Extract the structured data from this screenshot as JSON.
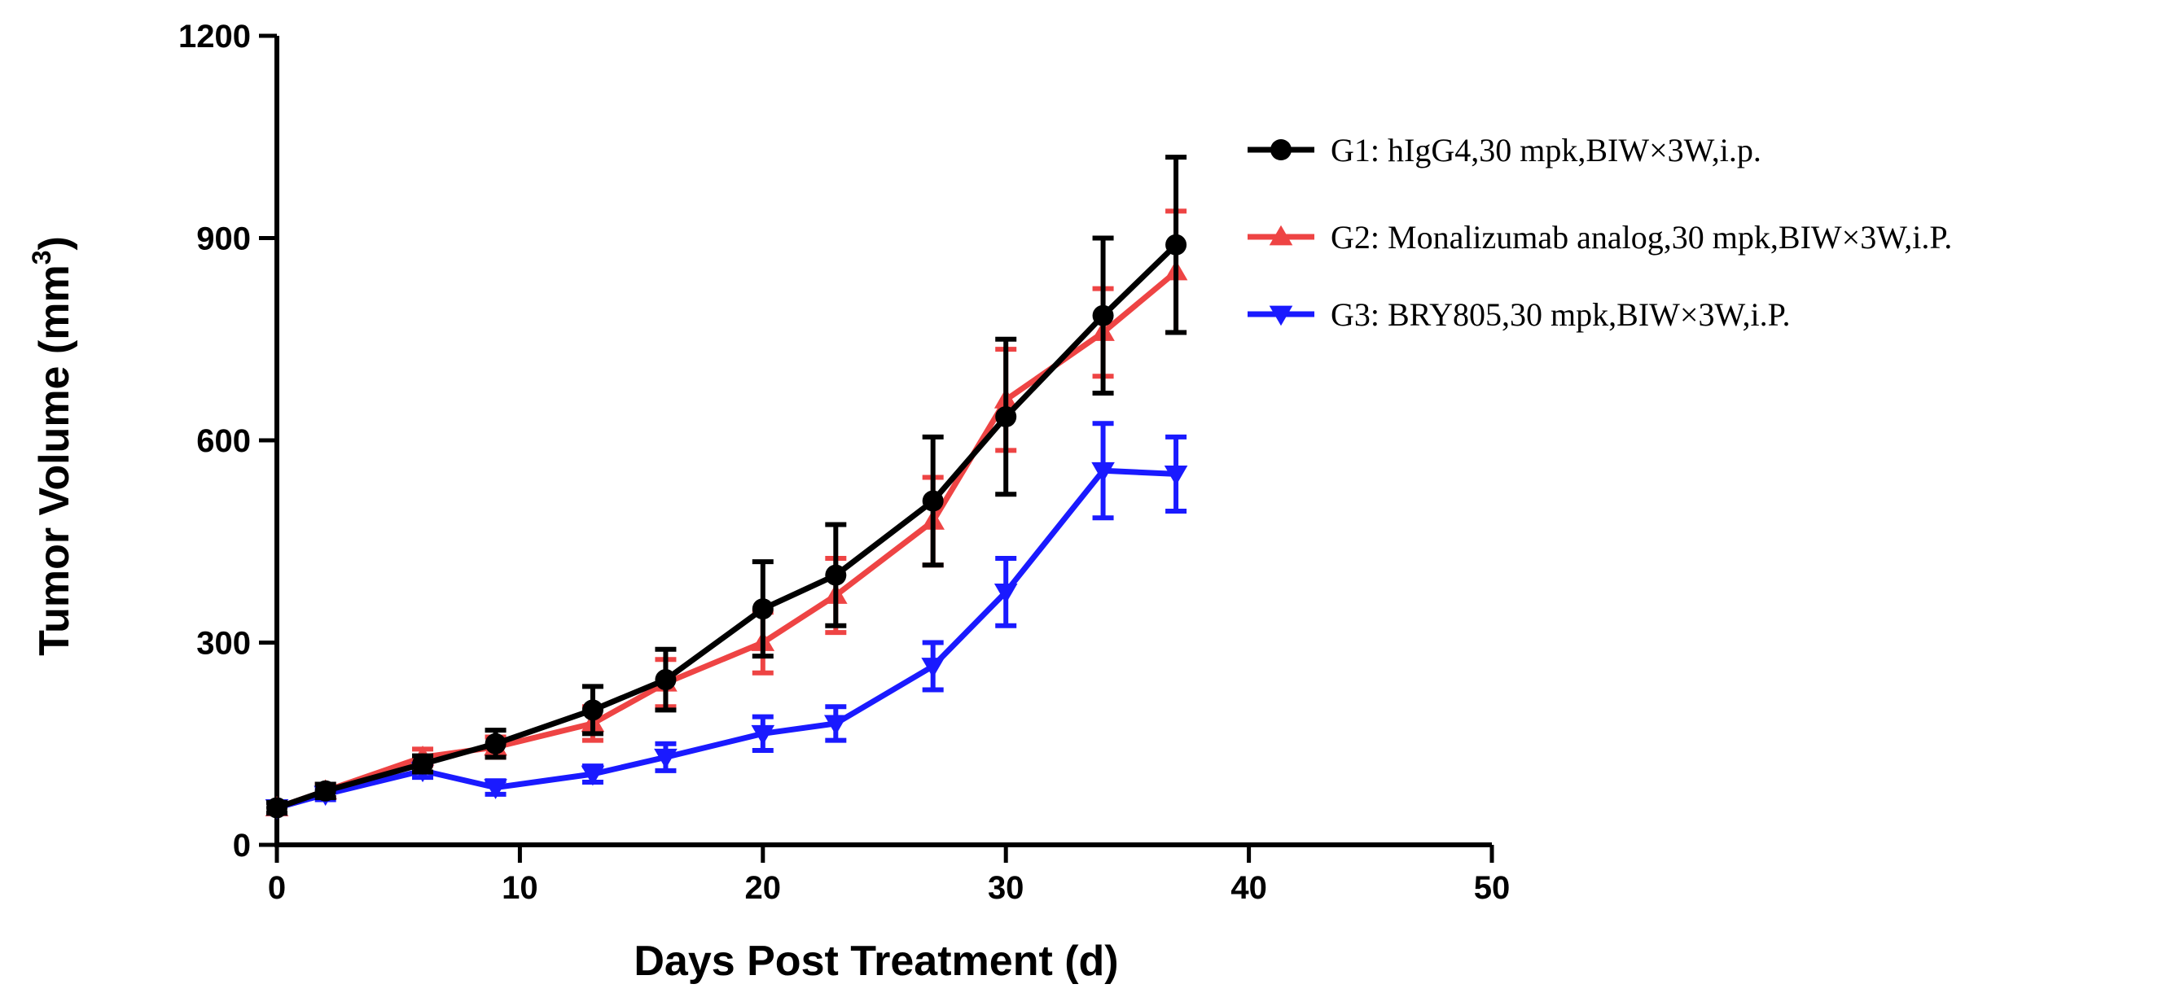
{
  "chart_data": {
    "type": "line",
    "xlabel": "Days Post Treatment (d)",
    "ylabel": "Tumor Volume (mm",
    "ylabel_superscript": "3",
    "ylabel_close": ")",
    "xlim": [
      0,
      50
    ],
    "ylim": [
      0,
      1200
    ],
    "x_ticks": [
      0,
      10,
      20,
      30,
      40,
      50
    ],
    "y_ticks": [
      0,
      300,
      600,
      900,
      1200
    ],
    "legend_position": "right",
    "series": [
      {
        "name": "G1: hIgG4,30 mpk,BIW×3W,i.p.",
        "color": "#000000",
        "marker": "circle",
        "x": [
          0,
          2,
          6,
          9,
          13,
          16,
          20,
          23,
          27,
          30,
          34,
          37
        ],
        "values": [
          55,
          80,
          120,
          150,
          200,
          245,
          350,
          400,
          510,
          635,
          785,
          890
        ],
        "error": [
          8,
          10,
          12,
          20,
          35,
          45,
          70,
          75,
          95,
          115,
          115,
          130
        ]
      },
      {
        "name": "G2: Monalizumab analog,30 mpk,BIW×3W,i.P.",
        "color": "#ee4444",
        "marker": "triangle-up",
        "x": [
          0,
          2,
          6,
          9,
          13,
          16,
          20,
          23,
          27,
          30,
          34,
          37
        ],
        "values": [
          55,
          80,
          130,
          145,
          180,
          240,
          300,
          370,
          480,
          660,
          760,
          850
        ],
        "error": [
          8,
          10,
          12,
          15,
          25,
          35,
          45,
          55,
          65,
          75,
          65,
          90
        ]
      },
      {
        "name": "G3: BRY805,30 mpk,BIW×3W,i.P.",
        "color": "#1a1aff",
        "marker": "triangle-down",
        "x": [
          0,
          2,
          6,
          9,
          13,
          16,
          20,
          23,
          27,
          30,
          34,
          37
        ],
        "values": [
          55,
          75,
          110,
          85,
          105,
          130,
          165,
          180,
          265,
          375,
          555,
          550
        ],
        "error": [
          8,
          8,
          10,
          10,
          12,
          20,
          25,
          25,
          35,
          50,
          70,
          55
        ]
      }
    ]
  }
}
